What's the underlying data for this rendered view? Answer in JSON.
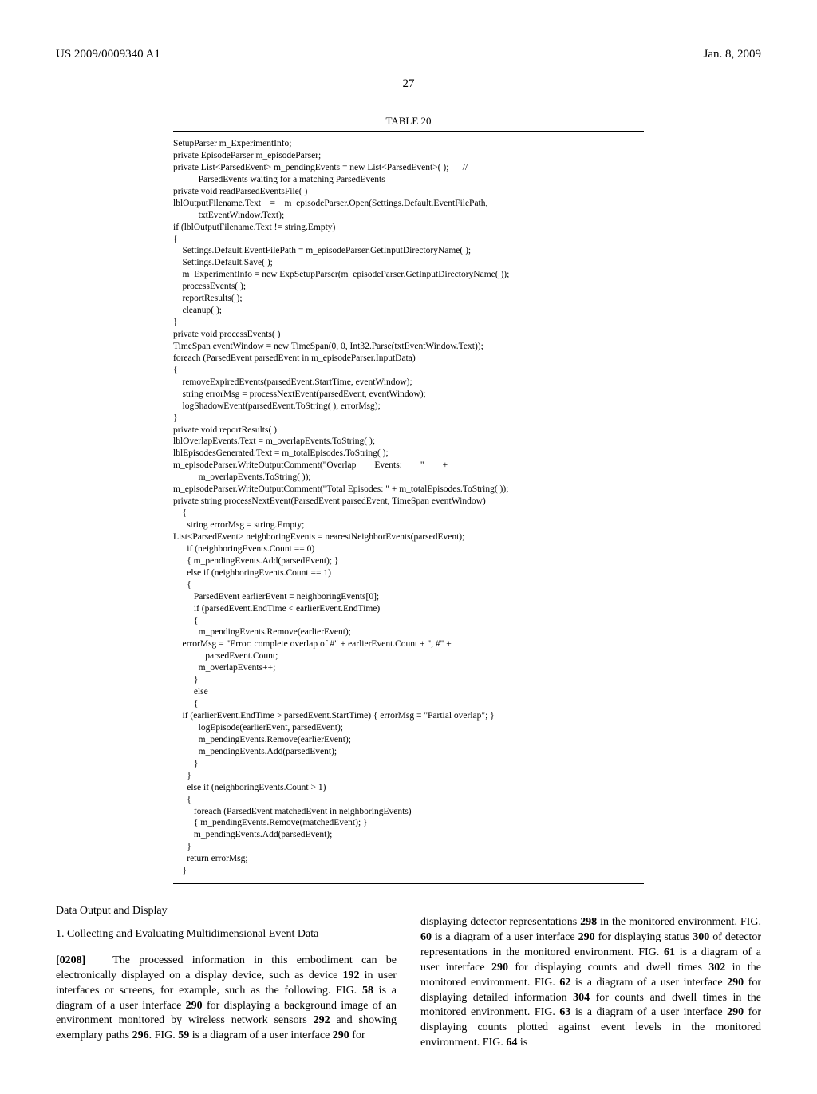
{
  "header": {
    "patent_number": "US 2009/0009340 A1",
    "date": "Jan. 8, 2009"
  },
  "page_number": "27",
  "table_caption": "TABLE 20",
  "code": "SetupParser m_ExperimentInfo;\nprivate EpisodeParser m_episodeParser;\nprivate List<ParsedEvent> m_pendingEvents = new List<ParsedEvent>( );      //\n           ParsedEvents waiting for a matching ParsedEvents\nprivate void readParsedEventsFile( )\nlblOutputFilename.Text    =    m_episodeParser.Open(Settings.Default.EventFilePath,\n           txtEventWindow.Text);\nif (lblOutputFilename.Text != string.Empty)\n{\n    Settings.Default.EventFilePath = m_episodeParser.GetInputDirectoryName( );\n    Settings.Default.Save( );\n    m_ExperimentInfo = new ExpSetupParser(m_episodeParser.GetInputDirectoryName( ));\n    processEvents( );\n    reportResults( );\n    cleanup( );\n}\nprivate void processEvents( )\nTimeSpan eventWindow = new TimeSpan(0, 0, Int32.Parse(txtEventWindow.Text));\nforeach (ParsedEvent parsedEvent in m_episodeParser.InputData)\n{\n    removeExpiredEvents(parsedEvent.StartTime, eventWindow);\n    string errorMsg = processNextEvent(parsedEvent, eventWindow);\n    logShadowEvent(parsedEvent.ToString( ), errorMsg);\n}\nprivate void reportResults( )\nlblOverlapEvents.Text = m_overlapEvents.ToString( );\nlblEpisodesGenerated.Text = m_totalEpisodes.ToString( );\nm_episodeParser.WriteOutputComment(\"Overlap        Events:        \"        +\n           m_overlapEvents.ToString( ));\nm_episodeParser.WriteOutputComment(\"Total Episodes: \" + m_totalEpisodes.ToString( ));\nprivate string processNextEvent(ParsedEvent parsedEvent, TimeSpan eventWindow)\n    {\n      string errorMsg = string.Empty;\nList<ParsedEvent> neighboringEvents = nearestNeighborEvents(parsedEvent);\n      if (neighboringEvents.Count == 0)\n      { m_pendingEvents.Add(parsedEvent); }\n      else if (neighboringEvents.Count == 1)\n      {\n         ParsedEvent earlierEvent = neighboringEvents[0];\n         if (parsedEvent.EndTime < earlierEvent.EndTime)\n         {\n           m_pendingEvents.Remove(earlierEvent);\n    errorMsg = \"Error: complete overlap of #\" + earlierEvent.Count + \", #\" +\n              parsedEvent.Count;\n           m_overlapEvents++;\n         }\n         else\n         {\n    if (earlierEvent.EndTime > parsedEvent.StartTime) { errorMsg = \"Partial overlap\"; }\n           logEpisode(earlierEvent, parsedEvent);\n           m_pendingEvents.Remove(earlierEvent);\n           m_pendingEvents.Add(parsedEvent);\n         }\n      }\n      else if (neighboringEvents.Count > 1)\n      {\n         foreach (ParsedEvent matchedEvent in neighboringEvents)\n         { m_pendingEvents.Remove(matchedEvent); }\n         m_pendingEvents.Add(parsedEvent);\n      }\n      return errorMsg;\n    }",
  "left_col": {
    "heading": "Data Output and Display",
    "subheading": "1. Collecting and Evaluating Multidimensional Event Data",
    "para_num": "[0208]",
    "para_text_1": "The processed information in this embodiment can be electronically displayed on a display device, such as device ",
    "bold_192": "192",
    "para_text_2": " in user interfaces or screens, for example, such as the following. FIG. ",
    "bold_58": "58",
    "para_text_3": " is a diagram of a user interface ",
    "bold_290a": "290",
    "para_text_4": " for displaying a background image of an environment monitored by wireless network sensors ",
    "bold_292": "292",
    "para_text_5": " and showing exemplary paths ",
    "bold_296": "296",
    "para_text_6": ". FIG. ",
    "bold_59": "59",
    "para_text_7": " is a diagram of a user interface ",
    "bold_290b": "290",
    "para_text_8": " for"
  },
  "right_col": {
    "para_text_1": "displaying detector representations ",
    "bold_298": "298",
    "para_text_2": " in the monitored environment. FIG. ",
    "bold_60": "60",
    "para_text_3": " is a diagram of a user interface ",
    "bold_290c": "290",
    "para_text_4": " for displaying status ",
    "bold_300": "300",
    "para_text_5": " of detector representations in the monitored environment. FIG. ",
    "bold_61": "61",
    "para_text_6": " is a diagram of a user interface ",
    "bold_290d": "290",
    "para_text_7": " for displaying counts and dwell times ",
    "bold_302": "302",
    "para_text_8": " in the monitored environment. FIG. ",
    "bold_62": "62",
    "para_text_9": " is a diagram of a user interface ",
    "bold_290e": "290",
    "para_text_10": " for displaying detailed information ",
    "bold_304": "304",
    "para_text_11": " for counts and dwell times in the monitored environment. FIG. ",
    "bold_63": "63",
    "para_text_12": " is a diagram of a user interface ",
    "bold_290f": "290",
    "para_text_13": " for displaying counts plotted against event levels in the monitored environment. FIG. ",
    "bold_64": "64",
    "para_text_14": " is"
  }
}
